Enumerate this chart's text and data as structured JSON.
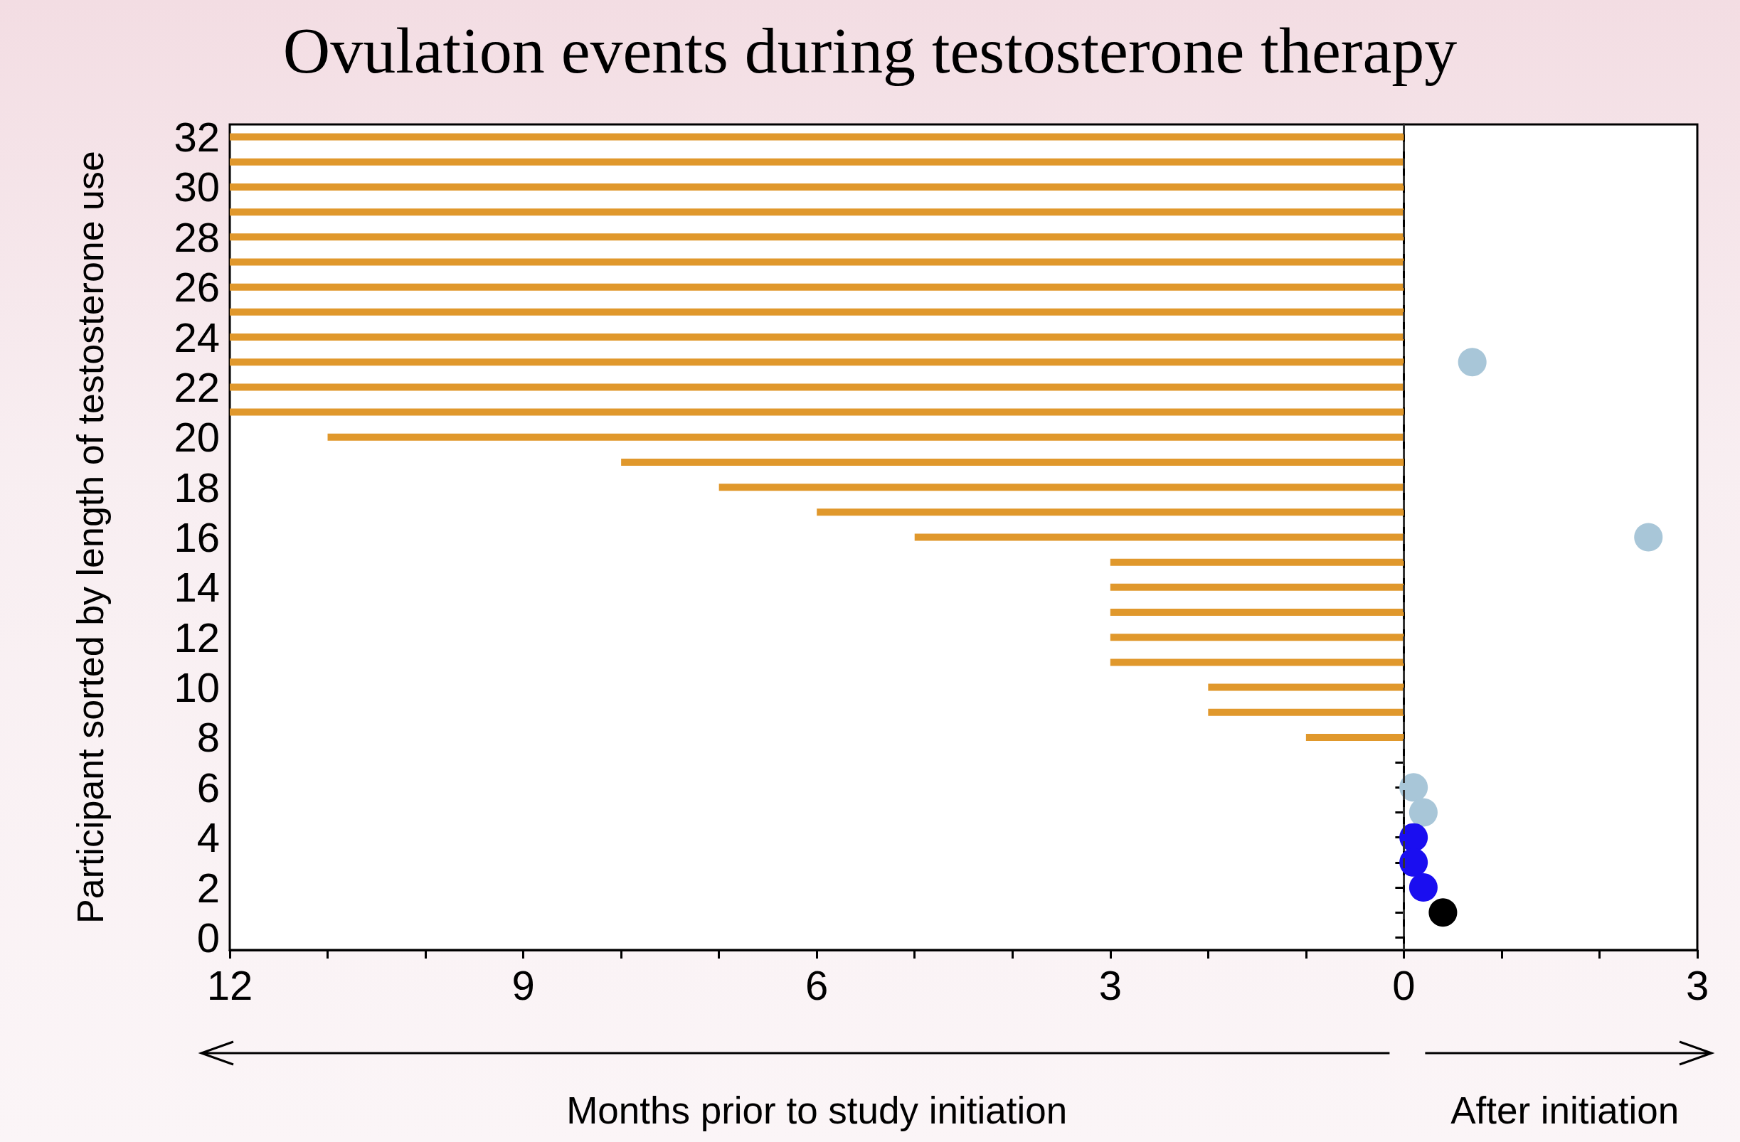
{
  "chart_data": {
    "type": "bar",
    "orientation": "horizontal",
    "title": "Ovulation events during testosterone therapy",
    "ylabel": "Participant sorted by length of testosterone use",
    "xlabel": "Months prior to study initiation",
    "annotations": [
      "After initiation"
    ],
    "categories": [
      "32",
      null,
      "30",
      null,
      "28",
      null,
      "26",
      null,
      "24",
      null,
      "22",
      null,
      "20",
      null,
      "18",
      null,
      "16",
      null,
      "14",
      null,
      "12",
      null,
      "10",
      null,
      "8",
      null,
      "6",
      null,
      "4",
      null,
      "2",
      null,
      "0"
    ],
    "xlim": [
      -12,
      3
    ],
    "xticks": [
      {
        "value": -12,
        "label": "12"
      },
      {
        "value": -11,
        "label": null
      },
      {
        "value": -10,
        "label": null
      },
      {
        "value": -9,
        "label": "9"
      },
      {
        "value": -8,
        "label": null
      },
      {
        "value": -7,
        "label": null
      },
      {
        "value": -6,
        "label": "6"
      },
      {
        "value": -5,
        "label": null
      },
      {
        "value": -4,
        "label": null
      },
      {
        "value": -3,
        "label": "3"
      },
      {
        "value": -2,
        "label": null
      },
      {
        "value": -1,
        "label": null
      },
      0,
      {
        "value": 1,
        "label": null
      },
      {
        "value": 2,
        "label": null
      },
      3
    ],
    "marker": "circle",
    "ref_lines": [
      {
        "axis": "x",
        "value": 0,
        "color": "#333333",
        "line_style": "dashed"
      }
    ],
    "series": [
      {
        "type": "bar",
        "color": "#e0982c",
        "values": [
          12,
          12,
          12,
          12,
          12,
          12,
          12,
          12,
          12,
          12,
          12,
          12,
          11,
          8,
          7,
          6,
          5,
          3,
          3,
          3,
          3,
          3,
          2,
          2,
          1,
          null,
          null,
          null,
          null,
          null,
          null,
          null,
          null
        ],
        "base": [
          -12,
          -12,
          -12,
          -12,
          -12,
          -12,
          -12,
          -12,
          -12,
          -12,
          -12,
          -12,
          -11,
          -8,
          -7,
          -6,
          -5,
          -3,
          -3,
          -3,
          -3,
          -3,
          -2,
          -2,
          -1,
          null,
          null,
          null,
          null,
          null,
          null,
          null,
          null
        ]
      },
      {
        "type": "scatter",
        "color": "#a8c6d8",
        "values": [
          null,
          null,
          null,
          null,
          null,
          null,
          null,
          null,
          null,
          0.7,
          null,
          null,
          null,
          null,
          null,
          null,
          2.5,
          null,
          null,
          null,
          null,
          null,
          null,
          null,
          null,
          null,
          0.1,
          0.2,
          null,
          null,
          null,
          null,
          null
        ]
      },
      {
        "type": "scatter",
        "color": "#1a0ef0",
        "values": [
          null,
          null,
          null,
          null,
          null,
          null,
          null,
          null,
          null,
          null,
          null,
          null,
          null,
          null,
          null,
          null,
          null,
          null,
          null,
          null,
          null,
          null,
          null,
          null,
          null,
          null,
          null,
          null,
          0.1,
          0.1,
          0.2,
          null,
          null
        ]
      },
      {
        "type": "scatter",
        "color": "#000000",
        "values": [
          null,
          null,
          null,
          null,
          null,
          null,
          null,
          null,
          null,
          null,
          null,
          null,
          null,
          null,
          null,
          null,
          null,
          null,
          null,
          null,
          null,
          null,
          null,
          null,
          null,
          null,
          null,
          null,
          null,
          null,
          null,
          0.4,
          null
        ]
      }
    ]
  }
}
